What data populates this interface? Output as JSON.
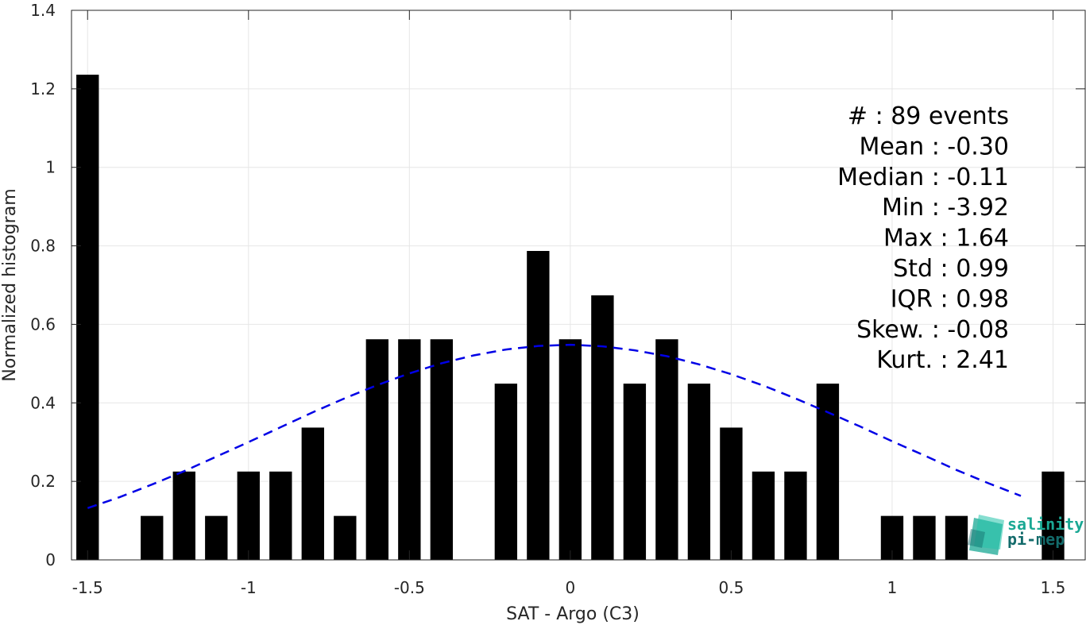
{
  "chart_data": {
    "type": "bar",
    "xlabel": "SAT - Argo (C3)",
    "ylabel": "Normalized histogram",
    "xlim": [
      -1.55,
      1.6
    ],
    "ylim": [
      0,
      1.4
    ],
    "grid": true,
    "x_ticks": [
      -1.5,
      -1,
      -0.5,
      0,
      0.5,
      1,
      1.5
    ],
    "x_tick_labels": [
      "-1.5",
      "-1",
      "-0.5",
      "0",
      "0.5",
      "1",
      "1.5"
    ],
    "y_ticks": [
      0,
      0.2,
      0.4,
      0.6,
      0.8,
      1,
      1.2,
      1.4
    ],
    "y_tick_labels": [
      "0",
      "0.2",
      "0.4",
      "0.6",
      "0.8",
      "1",
      "1.2",
      "1.4"
    ],
    "bar_width": 0.07,
    "series": [
      {
        "type": "bar",
        "color": "#000000",
        "x": [
          -1.5,
          -1.4,
          -1.3,
          -1.2,
          -1.1,
          -1.0,
          -0.9,
          -0.8,
          -0.7,
          -0.6,
          -0.5,
          -0.4,
          -0.3,
          -0.2,
          -0.1,
          0.0,
          0.1,
          0.2,
          0.3,
          0.4,
          0.5,
          0.6,
          0.7,
          0.8,
          0.9,
          1.0,
          1.1,
          1.2,
          1.3,
          1.4,
          1.5
        ],
        "values": [
          1.236,
          0,
          0.112,
          0.225,
          0.112,
          0.225,
          0.225,
          0.337,
          0.112,
          0.562,
          0.562,
          0.562,
          0,
          0.449,
          0.787,
          0.562,
          0.674,
          0.449,
          0.562,
          0.449,
          0.337,
          0.225,
          0.225,
          0.449,
          0,
          0.112,
          0.112,
          0.112,
          0,
          0,
          0.225
        ]
      },
      {
        "type": "line",
        "style": "dashed",
        "color": "#0000e6",
        "x": [
          -1.5,
          -1.4,
          -1.3,
          -1.2,
          -1.1,
          -1.0,
          -0.9,
          -0.8,
          -0.7,
          -0.6,
          -0.5,
          -0.4,
          -0.3,
          -0.2,
          -0.1,
          0.0,
          0.1,
          0.2,
          0.3,
          0.4,
          0.5,
          0.6,
          0.7,
          0.8,
          0.9,
          1.0,
          1.1,
          1.2,
          1.3,
          1.4
        ],
        "values": [
          0.132,
          0.16,
          0.192,
          0.226,
          0.263,
          0.3,
          0.338,
          0.376,
          0.412,
          0.445,
          0.475,
          0.501,
          0.521,
          0.536,
          0.545,
          0.548,
          0.544,
          0.534,
          0.519,
          0.498,
          0.473,
          0.444,
          0.411,
          0.376,
          0.34,
          0.302,
          0.266,
          0.229,
          0.195,
          0.163
        ]
      }
    ],
    "stats": [
      {
        "label": "#  ",
        "value": ": 89 events"
      },
      {
        "label": "Mean ",
        "value": ": -0.30"
      },
      {
        "label": "Median ",
        "value": ": -0.11"
      },
      {
        "label": "Min ",
        "value": ": -3.92"
      },
      {
        "label": "Max ",
        "value": ": 1.64"
      },
      {
        "label": "Std ",
        "value": ": 0.99"
      },
      {
        "label": "IQR ",
        "value": ": 0.98"
      },
      {
        "label": "Skew. ",
        "value": ": -0.08"
      },
      {
        "label": "Kurt. ",
        "value": ": 2.41"
      }
    ]
  },
  "logo": {
    "line1": "salinity",
    "line2": "pi-mep",
    "color1": "#1aa894",
    "color2": "#136b6b"
  }
}
